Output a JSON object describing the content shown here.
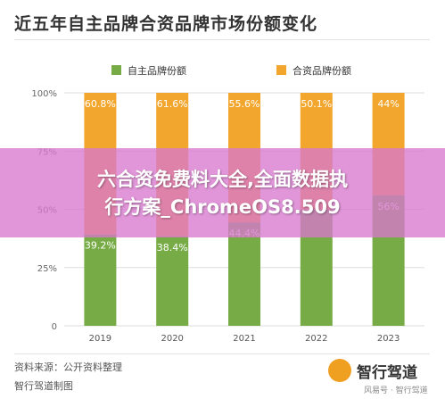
{
  "title": "近五年自主品牌合资品牌市场份额变化",
  "chart_data": {
    "type": "bar",
    "stacked": true,
    "categories": [
      "2019",
      "2020",
      "2021",
      "2022",
      "2023"
    ],
    "series": [
      {
        "name": "自主品牌份额",
        "values": [
          39.2,
          38.4,
          44.4,
          49.9,
          56
        ],
        "labels": [
          "39.2%",
          "38.4%",
          "44.4%",
          "",
          "56%"
        ],
        "color": "#76ab45"
      },
      {
        "name": "合资品牌份额",
        "values": [
          60.8,
          61.6,
          55.6,
          50.1,
          44
        ],
        "labels": [
          "60.8%",
          "61.6%",
          "55.6%",
          "50.1%",
          "44%"
        ],
        "color": "#f3a62d"
      }
    ],
    "ylim": [
      0,
      100
    ],
    "yticks": [
      "0",
      "25%",
      "50%",
      "75%",
      "100%"
    ],
    "grid": true,
    "legend": "top"
  },
  "overlay": {
    "line1": "六合资免费料大全,全面数据执",
    "line2": "行方案_ChromeOS8.509"
  },
  "footer": {
    "source": "资料来源：公开资料整理",
    "maker": "智行驾道制图",
    "logo": "智行驾道",
    "watermark": "风易号 · 智行驾道"
  }
}
